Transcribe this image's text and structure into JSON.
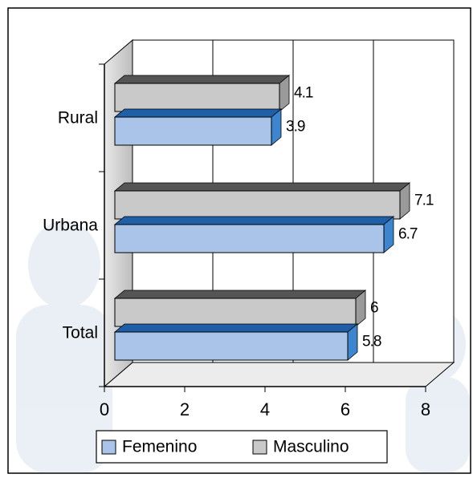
{
  "chart_data": {
    "type": "bar",
    "orientation": "horizontal",
    "three_d": true,
    "categories": [
      "Rural",
      "Urbana",
      "Total"
    ],
    "series": [
      {
        "name": "Femenino",
        "color": "#a9c4e8",
        "values": [
          3.9,
          6.7,
          5.8
        ]
      },
      {
        "name": "Masculino",
        "color": "#c9c9c9",
        "values": [
          4.1,
          7.1,
          6
        ]
      }
    ],
    "xlim": [
      0,
      8
    ],
    "xticks": [
      0,
      2,
      4,
      6,
      8
    ],
    "grid": true,
    "legend": "bottom"
  }
}
